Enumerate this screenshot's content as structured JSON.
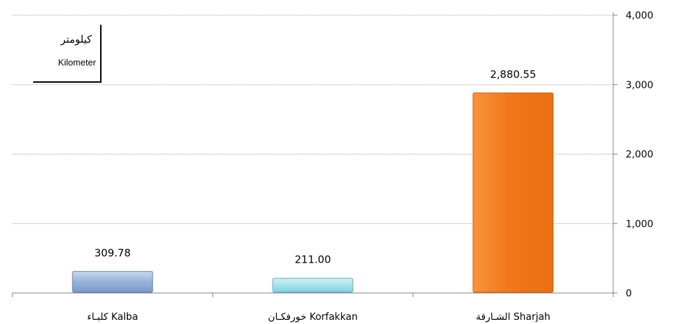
{
  "chart_data": {
    "type": "bar",
    "categories": [
      "كلبـاء Kalba",
      "خورفكـان Korfakkan",
      "الشـارقة Sharjah"
    ],
    "values": [
      309.78,
      211.0,
      2880.55
    ],
    "value_labels": [
      "309.78",
      "211.00",
      "2,880.55"
    ],
    "y_ticks": [
      "0",
      "1,000",
      "2,000",
      "3,000",
      "4,000"
    ],
    "ylim": [
      0,
      4000
    ],
    "y_axis_side": "right",
    "grid": true,
    "unit_label_ar": "كيلومتر",
    "unit_label_en": "Kilometer",
    "colors": [
      "#95b3d7",
      "#a6e1ee",
      "#f47a1c"
    ],
    "edge_colors": [
      "#5b7fb0",
      "#6aa9b9",
      "#c85d10"
    ]
  }
}
